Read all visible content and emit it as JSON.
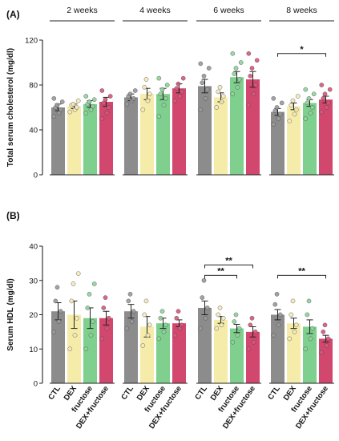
{
  "chart_data": [
    {
      "type": "bar",
      "panel_label": "(A)",
      "ylabel": "Total serum cholesterol (mg/dl)",
      "ylim": [
        0,
        120
      ],
      "yticks": [
        "0",
        "40",
        "80",
        "120"
      ],
      "groups": [
        "2 weeks",
        "4 weeks",
        "6 weeks",
        "8 weeks"
      ],
      "categories": [
        "CTL",
        "DEX",
        "fructose",
        "DEX+fructose"
      ],
      "error_bars": true,
      "series": [
        {
          "group": "2 weeks",
          "values": [
            60,
            61,
            63,
            65
          ],
          "err": [
            3,
            2,
            3,
            4
          ],
          "points": [
            [
              52,
              55,
              58,
              60,
              62,
              65,
              68
            ],
            [
              56,
              58,
              60,
              62,
              63,
              66
            ],
            [
              55,
              58,
              61,
              63,
              65,
              67,
              70
            ],
            [
              50,
              55,
              60,
              64,
              67,
              70,
              75
            ]
          ]
        },
        {
          "group": "4 weeks",
          "values": [
            69,
            72,
            72,
            77
          ],
          "err": [
            3,
            5,
            5,
            4
          ],
          "points": [
            [
              63,
              66,
              68,
              70,
              72,
              75
            ],
            [
              58,
              66,
              72,
              78,
              85
            ],
            [
              52,
              62,
              68,
              72,
              76,
              80,
              86
            ],
            [
              66,
              70,
              74,
              77,
              81,
              86
            ]
          ]
        },
        {
          "group": "6 weeks",
          "values": [
            79,
            69,
            87,
            85
          ],
          "err": [
            6,
            4,
            5,
            7
          ],
          "points": [
            [
              58,
              68,
              76,
              82,
              88,
              95,
              99
            ],
            [
              60,
              65,
              70,
              74,
              78
            ],
            [
              72,
              78,
              85,
              90,
              95,
              100,
              108
            ],
            [
              62,
              72,
              80,
              88,
              95,
              102,
              108
            ]
          ]
        },
        {
          "group": "8 weeks",
          "values": [
            56,
            61,
            64,
            67
          ],
          "err": [
            3,
            3,
            3,
            3
          ],
          "points": [
            [
              45,
              50,
              54,
              57,
              60,
              64,
              68
            ],
            [
              48,
              54,
              58,
              62,
              66,
              70
            ],
            [
              50,
              55,
              60,
              64,
              68,
              72,
              76
            ],
            [
              56,
              60,
              64,
              68,
              72,
              76,
              80
            ]
          ]
        }
      ],
      "annotations": [
        {
          "group": "8 weeks",
          "from": "CTL",
          "to": "DEX+fructose",
          "text": "*"
        }
      ]
    },
    {
      "type": "bar",
      "panel_label": "(B)",
      "ylabel": "Serum HDL (mg/dl)",
      "ylim": [
        0,
        40
      ],
      "yticks": [
        "0",
        "10",
        "20",
        "30",
        "40"
      ],
      "groups": [
        "2 weeks",
        "4 weeks",
        "6 weeks",
        "8 weeks"
      ],
      "categories": [
        "CTL",
        "DEX",
        "fructose",
        "DEX+fructose"
      ],
      "error_bars": true,
      "series": [
        {
          "group": "2 weeks",
          "values": [
            21,
            20,
            19,
            19
          ],
          "err": [
            2.5,
            4,
            3,
            2
          ],
          "points": [
            [
              15,
              18,
              21,
              24,
              28
            ],
            [
              10,
              14,
              19,
              24,
              29,
              32
            ],
            [
              10,
              14,
              18,
              22,
              26,
              29
            ],
            [
              13,
              16,
              19,
              22,
              25
            ]
          ]
        },
        {
          "group": "4 weeks",
          "values": [
            21,
            16.5,
            17.5,
            17.5
          ],
          "err": [
            2,
            3,
            1.5,
            1
          ],
          "points": [
            [
              16,
              18,
              21,
              24,
              26
            ],
            [
              11,
              14,
              17,
              20,
              24
            ],
            [
              13,
              15,
              17,
              19,
              21
            ],
            [
              14,
              16,
              17,
              19,
              21
            ]
          ]
        },
        {
          "group": "6 weeks",
          "values": [
            22,
            18.5,
            16,
            15
          ],
          "err": [
            2,
            1,
            1.2,
            1.5
          ],
          "points": [
            [
              16,
              19,
              22,
              25,
              30
            ],
            [
              16,
              17,
              19,
              20,
              22
            ],
            [
              12,
              14,
              16,
              18,
              20
            ],
            [
              10,
              12,
              15,
              17,
              19
            ]
          ]
        },
        {
          "group": "8 weeks",
          "values": [
            20,
            17.5,
            16.5,
            13
          ],
          "err": [
            1.5,
            1.5,
            2,
            1
          ],
          "points": [
            [
              14,
              17,
              20,
              23,
              26
            ],
            [
              13,
              15,
              17,
              20,
              24
            ],
            [
              10,
              13,
              16,
              20,
              24
            ],
            [
              9,
              11,
              13,
              15,
              17
            ]
          ]
        }
      ],
      "annotations": [
        {
          "group": "6 weeks",
          "from": "CTL",
          "to": "fructose",
          "text": "**"
        },
        {
          "group": "6 weeks",
          "from": "CTL",
          "to": "DEX+fructose",
          "text": "**"
        },
        {
          "group": "8 weeks",
          "from": "CTL",
          "to": "DEX+fructose",
          "text": "**"
        }
      ]
    }
  ],
  "colors": {
    "bars": [
      "#8c8c8c",
      "#f5ecaa",
      "#7fcf8e",
      "#d2476d"
    ],
    "dots": [
      "#999999",
      "#f6eab8",
      "#8ed49a",
      "#d8557a"
    ]
  }
}
